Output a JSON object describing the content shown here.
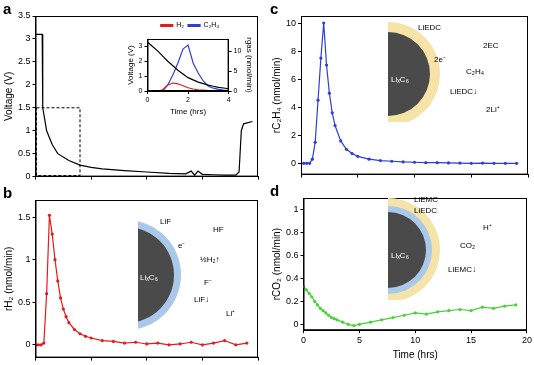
{
  "chart_data": [
    {
      "type": "line",
      "panel_label": "a",
      "ylabel": "Voltage (V)",
      "x": [
        0,
        0.6,
        0.65,
        1,
        1.5,
        2,
        3,
        4,
        5,
        6,
        8,
        10,
        12,
        13.5,
        14,
        14.3,
        14.6,
        15,
        16,
        17,
        18,
        18.3,
        18.5,
        18.7,
        19.5
      ],
      "series": [
        {
          "color": "#000000",
          "values": [
            3.1,
            3.1,
            1.5,
            1.0,
            0.7,
            0.5,
            0.35,
            0.25,
            0.2,
            0.17,
            0.13,
            0.1,
            0.07,
            0.06,
            0.12,
            0.03,
            0.12,
            0.05,
            0.04,
            0.03,
            0.03,
            0.1,
            1.0,
            1.15,
            1.2
          ]
        }
      ],
      "xlim": [
        0,
        20
      ],
      "xticks": [
        0,
        5,
        10,
        15,
        20
      ],
      "ylim": [
        0,
        3.5
      ],
      "yticks": [
        0,
        0.5,
        1,
        1.5,
        2,
        2.5,
        3,
        3.5
      ],
      "grid": false,
      "tick_labels": "y",
      "zoom_box": {
        "x": [
          0,
          4
        ],
        "y": [
          0,
          1.5
        ]
      },
      "inset": {
        "type": "line",
        "xlabel": "Time (hrs)",
        "ylabel": "Voltage (V)",
        "y2label": "rgas (nmol/min)",
        "x": [
          0,
          0.25,
          0.5,
          0.75,
          1,
          1.25,
          1.5,
          1.75,
          2,
          2.25,
          2.5,
          2.75,
          3,
          3.25,
          3.5,
          3.75,
          4
        ],
        "series": [
          {
            "color": "#000000",
            "values": [
              3.3,
              3.0,
              2.7,
              2.35,
              2.0,
              1.7,
              1.4,
              1.15,
              0.9,
              0.75,
              0.6,
              0.5,
              0.4,
              0.32,
              0.25,
              0.2,
              0.15
            ]
          },
          {
            "name": "H₂",
            "color": "#e41a1c",
            "axis": "y2",
            "values": [
              0,
              0,
              0,
              0.3,
              1.5,
              2.0,
              1.8,
              1.3,
              0.8,
              0.5,
              0.3,
              0.2,
              0.1,
              0.05,
              0,
              0,
              0
            ]
          },
          {
            "name": "C₂H₄",
            "color": "#2f3fd6",
            "axis": "y2",
            "values": [
              0,
              0,
              0,
              0,
              1.5,
              4,
              7,
              10.5,
              11.5,
              7,
              4.5,
              2.5,
              1.2,
              0.7,
              0.4,
              0.2,
              0.1
            ]
          }
        ],
        "xlim": [
          0,
          4
        ],
        "xticks": [
          0,
          2,
          4
        ],
        "ylim": [
          0,
          3.5
        ],
        "yticks": [
          0,
          1,
          2,
          3
        ],
        "y2lim": [
          0,
          13
        ],
        "y2ticks": [
          0,
          5,
          10
        ],
        "legend": "top",
        "grid": false,
        "tick_labels": true
      }
    },
    {
      "type": "line",
      "panel_label": "b",
      "ylabel": "rH₂ (nmol/min)",
      "marker": "circle",
      "x": [
        0,
        0.25,
        0.5,
        0.75,
        1,
        1.25,
        1.5,
        1.75,
        2,
        2.25,
        2.5,
        2.75,
        3,
        3.5,
        4,
        4.5,
        5,
        6,
        7,
        8,
        9,
        10,
        11,
        12,
        13,
        14,
        15,
        16,
        17,
        18,
        19
      ],
      "series": [
        {
          "color": "#e41a1c",
          "values": [
            0,
            0,
            0,
            0.02,
            0.6,
            1.52,
            1.3,
            1.0,
            0.75,
            0.55,
            0.42,
            0.33,
            0.26,
            0.18,
            0.13,
            0.1,
            0.08,
            0.05,
            0.04,
            0.02,
            0.03,
            0.01,
            0.02,
            0,
            0.01,
            0.03,
            0,
            0.02,
            0.05,
            0,
            0.02
          ]
        }
      ],
      "xlim": [
        0,
        20
      ],
      "xticks": [
        0,
        5,
        10,
        15,
        20
      ],
      "ylim": [
        -0.15,
        1.7
      ],
      "yticks": [
        0,
        0.5,
        1,
        1.5
      ],
      "grid": false,
      "tick_labels": "y",
      "schematic": {
        "labels": [
          "LiF",
          "HF",
          "e⁻",
          "½H₂↑",
          "F⁻",
          "LiF↓",
          "Li⁺",
          "LiₓC₆"
        ]
      }
    },
    {
      "type": "line",
      "panel_label": "c",
      "ylabel": "rC₂H₄ (nmol/min)",
      "marker": "circle",
      "x": [
        0,
        0.25,
        0.5,
        0.75,
        1,
        1.25,
        1.5,
        1.75,
        2,
        2.25,
        2.5,
        2.75,
        3,
        3.5,
        4,
        4.5,
        5,
        6,
        7,
        8,
        9,
        10,
        11,
        12,
        13,
        14,
        15,
        16,
        17,
        18,
        19
      ],
      "series": [
        {
          "color": "#2f3fd6",
          "values": [
            0,
            0,
            0,
            0,
            0.3,
            1.5,
            4.5,
            7.5,
            10,
            7,
            5,
            3.6,
            2.7,
            1.6,
            1.0,
            0.7,
            0.5,
            0.3,
            0.2,
            0.15,
            0.1,
            0.08,
            0.05,
            0.05,
            0.03,
            0.02,
            0,
            0.02,
            0,
            0,
            0
          ]
        }
      ],
      "xlim": [
        0,
        20
      ],
      "xticks": [
        0,
        5,
        10,
        15,
        20
      ],
      "ylim": [
        -0.8,
        10.5
      ],
      "yticks": [
        0,
        2,
        4,
        6,
        8,
        10
      ],
      "grid": false,
      "tick_labels": "y",
      "schematic": {
        "labels": [
          "LiEDC",
          "2EC",
          "2e⁻",
          "C₂H₄",
          "LiEDC↓",
          "2Li⁺",
          "LiₓC₆"
        ]
      }
    },
    {
      "type": "line",
      "panel_label": "d",
      "ylabel": "rCO₂ (nmol/min)",
      "xlabel": "Time (hrs)",
      "marker": "circle",
      "x": [
        0,
        0.25,
        0.5,
        0.75,
        1,
        1.25,
        1.5,
        1.75,
        2,
        2.25,
        2.5,
        2.75,
        3,
        3.5,
        4,
        4.5,
        5,
        6,
        7,
        8,
        9,
        10,
        11,
        12,
        13,
        14,
        15,
        16,
        17,
        18,
        19
      ],
      "series": [
        {
          "color": "#4ad13a",
          "values": [
            0.33,
            0.3,
            0.27,
            0.24,
            0.2,
            0.17,
            0.14,
            0.12,
            0.1,
            0.08,
            0.06,
            0.05,
            0.04,
            0.02,
            0,
            -0.01,
            0,
            0.02,
            0.04,
            0.06,
            0.08,
            0.1,
            0.09,
            0.11,
            0.12,
            0.13,
            0.12,
            0.15,
            0.14,
            0.16,
            0.17
          ]
        }
      ],
      "xlim": [
        0,
        20
      ],
      "xticks": [
        0,
        5,
        10,
        15,
        20
      ],
      "ylim": [
        -0.05,
        1.1
      ],
      "yticks": [
        0,
        0.2,
        0.4,
        0.6,
        0.8,
        1
      ],
      "grid": false,
      "tick_labels": true,
      "schematic": {
        "labels": [
          "LiEMC",
          "LiEDC",
          "H⁺",
          "CO₂",
          "LiEMC↓",
          "LiₓC₆"
        ]
      }
    }
  ]
}
